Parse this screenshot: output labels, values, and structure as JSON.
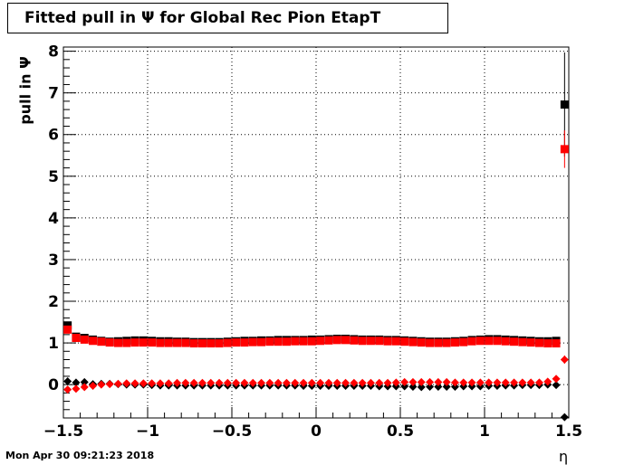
{
  "chart_data": {
    "type": "scatter",
    "title": "Fitted pull in  Ψ  for Global Rec Pion EtapT",
    "xlabel": "η",
    "ylabel": "pull in  Ψ",
    "xlim": [
      -1.5,
      1.5
    ],
    "ylim": [
      -0.8,
      8.1
    ],
    "grid": true,
    "x_ticks": [
      "−1.5",
      "−1",
      "−0.5",
      "0",
      "0.5",
      "1",
      "1.5"
    ],
    "y_ticks": [
      "0",
      "1",
      "2",
      "3",
      "4",
      "5",
      "6",
      "7",
      "8"
    ],
    "x": [
      -1.475,
      -1.425,
      -1.375,
      -1.325,
      -1.275,
      -1.225,
      -1.175,
      -1.125,
      -1.075,
      -1.025,
      -0.975,
      -0.925,
      -0.875,
      -0.825,
      -0.775,
      -0.725,
      -0.675,
      -0.625,
      -0.575,
      -0.525,
      -0.475,
      -0.425,
      -0.375,
      -0.325,
      -0.275,
      -0.225,
      -0.175,
      -0.125,
      -0.075,
      -0.025,
      0.025,
      0.075,
      0.125,
      0.175,
      0.225,
      0.275,
      0.325,
      0.375,
      0.425,
      0.475,
      0.525,
      0.575,
      0.625,
      0.675,
      0.725,
      0.775,
      0.825,
      0.875,
      0.925,
      0.975,
      1.025,
      1.075,
      1.125,
      1.175,
      1.225,
      1.275,
      1.325,
      1.375,
      1.425,
      1.475
    ],
    "series": [
      {
        "color": "#000000",
        "marker": "square",
        "values": [
          1.42,
          1.15,
          1.12,
          1.08,
          1.05,
          1.03,
          1.04,
          1.05,
          1.06,
          1.06,
          1.05,
          1.04,
          1.04,
          1.03,
          1.03,
          1.02,
          1.02,
          1.02,
          1.02,
          1.03,
          1.04,
          1.05,
          1.05,
          1.06,
          1.06,
          1.07,
          1.07,
          1.07,
          1.07,
          1.08,
          1.08,
          1.09,
          1.1,
          1.1,
          1.09,
          1.08,
          1.08,
          1.08,
          1.07,
          1.07,
          1.06,
          1.05,
          1.04,
          1.03,
          1.03,
          1.03,
          1.04,
          1.05,
          1.07,
          1.08,
          1.09,
          1.09,
          1.08,
          1.07,
          1.06,
          1.05,
          1.04,
          1.04,
          1.05,
          6.72
        ],
        "err": [
          0.03,
          0.03,
          0.03,
          0.03,
          0.03,
          0.03,
          0.03,
          0.03,
          0.03,
          0.03,
          0.03,
          0.03,
          0.03,
          0.03,
          0.03,
          0.03,
          0.03,
          0.03,
          0.03,
          0.03,
          0.03,
          0.03,
          0.03,
          0.03,
          0.03,
          0.03,
          0.03,
          0.03,
          0.03,
          0.03,
          0.03,
          0.03,
          0.03,
          0.03,
          0.03,
          0.03,
          0.03,
          0.03,
          0.03,
          0.03,
          0.03,
          0.03,
          0.03,
          0.03,
          0.03,
          0.03,
          0.03,
          0.03,
          0.03,
          0.03,
          0.03,
          0.03,
          0.03,
          0.03,
          0.03,
          0.03,
          0.03,
          0.03,
          0.03,
          1.25
        ]
      },
      {
        "color": "#ff0000",
        "marker": "square",
        "values": [
          1.32,
          1.12,
          1.08,
          1.05,
          1.03,
          1.01,
          1.0,
          1.0,
          1.01,
          1.01,
          1.01,
          1.0,
          1.0,
          1.0,
          1.0,
          0.99,
          0.99,
          0.99,
          0.99,
          1.0,
          1.01,
          1.01,
          1.02,
          1.02,
          1.03,
          1.03,
          1.03,
          1.04,
          1.04,
          1.04,
          1.05,
          1.06,
          1.07,
          1.07,
          1.06,
          1.05,
          1.05,
          1.05,
          1.04,
          1.04,
          1.03,
          1.02,
          1.01,
          1.0,
          1.0,
          1.0,
          1.01,
          1.02,
          1.04,
          1.05,
          1.05,
          1.05,
          1.04,
          1.03,
          1.02,
          1.01,
          1.0,
          0.99,
          0.99,
          5.65
        ],
        "err": [
          0.03,
          0.03,
          0.03,
          0.03,
          0.03,
          0.03,
          0.03,
          0.03,
          0.03,
          0.03,
          0.03,
          0.03,
          0.03,
          0.03,
          0.03,
          0.03,
          0.03,
          0.03,
          0.03,
          0.03,
          0.03,
          0.03,
          0.03,
          0.03,
          0.03,
          0.03,
          0.03,
          0.03,
          0.03,
          0.03,
          0.03,
          0.03,
          0.03,
          0.03,
          0.03,
          0.03,
          0.03,
          0.03,
          0.03,
          0.03,
          0.03,
          0.03,
          0.03,
          0.03,
          0.03,
          0.03,
          0.03,
          0.03,
          0.03,
          0.03,
          0.03,
          0.03,
          0.03,
          0.03,
          0.03,
          0.03,
          0.03,
          0.03,
          0.03,
          0.45
        ]
      },
      {
        "color": "#000000",
        "marker": "diamond",
        "values": [
          0.08,
          0.05,
          0.06,
          0.01,
          0.02,
          0.02,
          0.01,
          0.0,
          0.0,
          0.0,
          -0.01,
          -0.02,
          -0.02,
          -0.02,
          -0.02,
          -0.02,
          -0.02,
          -0.02,
          -0.02,
          -0.02,
          -0.02,
          -0.02,
          -0.02,
          -0.02,
          -0.02,
          -0.02,
          -0.02,
          -0.02,
          -0.03,
          -0.03,
          -0.03,
          -0.03,
          -0.03,
          -0.03,
          -0.03,
          -0.03,
          -0.03,
          -0.04,
          -0.04,
          -0.04,
          -0.04,
          -0.05,
          -0.06,
          -0.05,
          -0.05,
          -0.05,
          -0.05,
          -0.04,
          -0.04,
          -0.04,
          -0.03,
          -0.03,
          -0.02,
          -0.02,
          -0.01,
          -0.01,
          -0.01,
          0.0,
          -0.01,
          -0.78
        ],
        "err": [
          0.03,
          0.03,
          0.03,
          0.03,
          0.03,
          0.03,
          0.03,
          0.03,
          0.03,
          0.03,
          0.03,
          0.03,
          0.03,
          0.03,
          0.03,
          0.03,
          0.03,
          0.03,
          0.03,
          0.03,
          0.03,
          0.03,
          0.03,
          0.03,
          0.03,
          0.03,
          0.03,
          0.03,
          0.03,
          0.03,
          0.03,
          0.03,
          0.03,
          0.03,
          0.03,
          0.03,
          0.03,
          0.03,
          0.03,
          0.03,
          0.03,
          0.03,
          0.03,
          0.03,
          0.03,
          0.03,
          0.03,
          0.03,
          0.03,
          0.03,
          0.03,
          0.03,
          0.03,
          0.03,
          0.03,
          0.03,
          0.03,
          0.03,
          0.03,
          0.03
        ]
      },
      {
        "color": "#ff0000",
        "marker": "diamond",
        "values": [
          -0.12,
          -0.1,
          -0.06,
          -0.03,
          0.0,
          0.01,
          0.02,
          0.03,
          0.03,
          0.03,
          0.03,
          0.03,
          0.03,
          0.04,
          0.04,
          0.04,
          0.04,
          0.04,
          0.04,
          0.04,
          0.04,
          0.04,
          0.04,
          0.04,
          0.04,
          0.04,
          0.04,
          0.04,
          0.04,
          0.04,
          0.04,
          0.04,
          0.04,
          0.04,
          0.04,
          0.04,
          0.04,
          0.04,
          0.04,
          0.05,
          0.06,
          0.06,
          0.06,
          0.06,
          0.06,
          0.06,
          0.05,
          0.05,
          0.05,
          0.05,
          0.05,
          0.05,
          0.05,
          0.05,
          0.05,
          0.05,
          0.05,
          0.07,
          0.14,
          0.6
        ],
        "err": [
          0.03,
          0.03,
          0.03,
          0.03,
          0.03,
          0.03,
          0.03,
          0.03,
          0.03,
          0.03,
          0.03,
          0.03,
          0.03,
          0.03,
          0.03,
          0.03,
          0.03,
          0.03,
          0.03,
          0.03,
          0.03,
          0.03,
          0.03,
          0.03,
          0.03,
          0.03,
          0.03,
          0.03,
          0.03,
          0.03,
          0.03,
          0.03,
          0.03,
          0.03,
          0.03,
          0.03,
          0.03,
          0.03,
          0.03,
          0.03,
          0.03,
          0.03,
          0.03,
          0.03,
          0.03,
          0.03,
          0.03,
          0.03,
          0.03,
          0.03,
          0.03,
          0.03,
          0.03,
          0.03,
          0.03,
          0.03,
          0.03,
          0.03,
          0.03,
          0.1
        ]
      }
    ]
  },
  "timestamp": "Mon Apr 30 09:21:23 2018"
}
